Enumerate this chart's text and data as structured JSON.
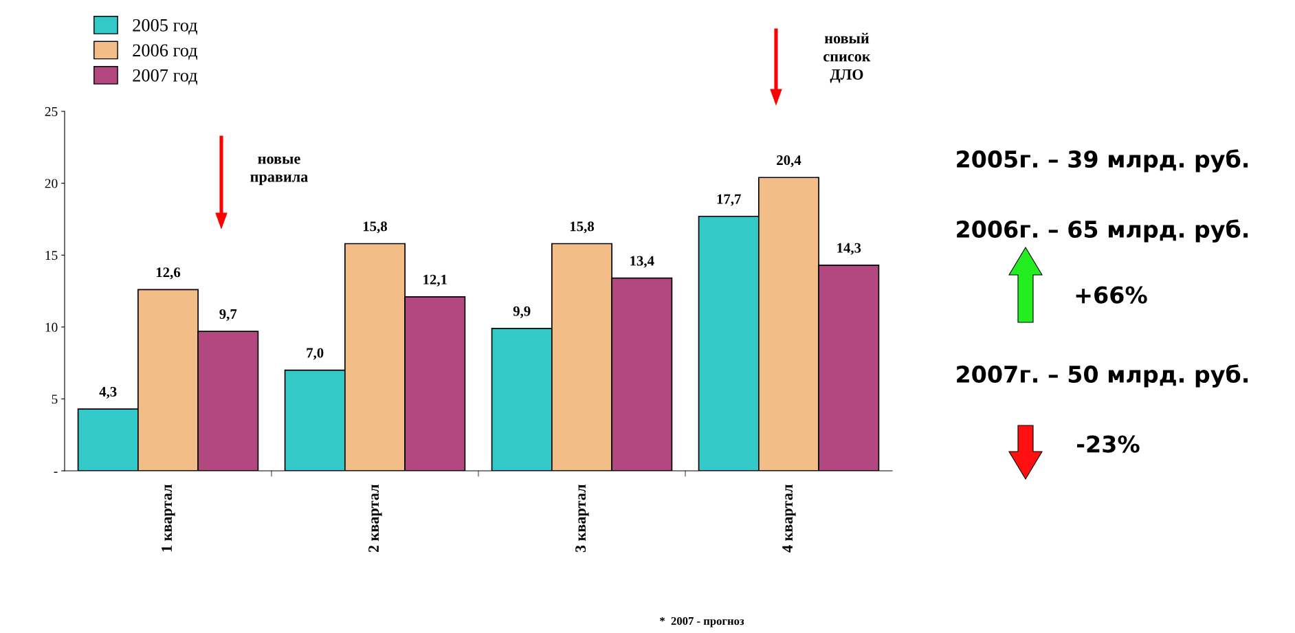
{
  "chart_data": {
    "type": "bar",
    "categories": [
      "1 квартал",
      "2 квартал",
      "3 квартал",
      "4 квартал"
    ],
    "series": [
      {
        "name": "2005 год",
        "color": "#33c9c9",
        "values": [
          4.3,
          7.0,
          9.9,
          17.7
        ],
        "value_labels": [
          "4,3",
          "7,0",
          "9,9",
          "17,7"
        ]
      },
      {
        "name": "2006 год",
        "color": "#f3bd88",
        "values": [
          12.6,
          15.8,
          15.8,
          20.4
        ],
        "value_labels": [
          "12,6",
          "15,8",
          "15,8",
          "20,4"
        ]
      },
      {
        "name": "2007 год",
        "color": "#b2487f",
        "values": [
          9.7,
          12.1,
          13.4,
          14.3
        ],
        "value_labels": [
          "9,7",
          "12,1",
          "13,4",
          "14,3"
        ]
      }
    ],
    "ylim": [
      0,
      25
    ],
    "yticks": [
      {
        "value": 0,
        "label": "-"
      },
      5,
      10,
      15,
      20,
      25
    ],
    "grid": false,
    "legend": "top left",
    "annotations": [
      "новые\nправила",
      "новый\nсписок\nДЛО",
      "2005г. – 39 млрд. руб.",
      "2006г. – 65 млрд. руб.",
      "+66%",
      "2007г. – 50 млрд. руб.",
      "-23%",
      "*  2007 - прогноз"
    ]
  }
}
